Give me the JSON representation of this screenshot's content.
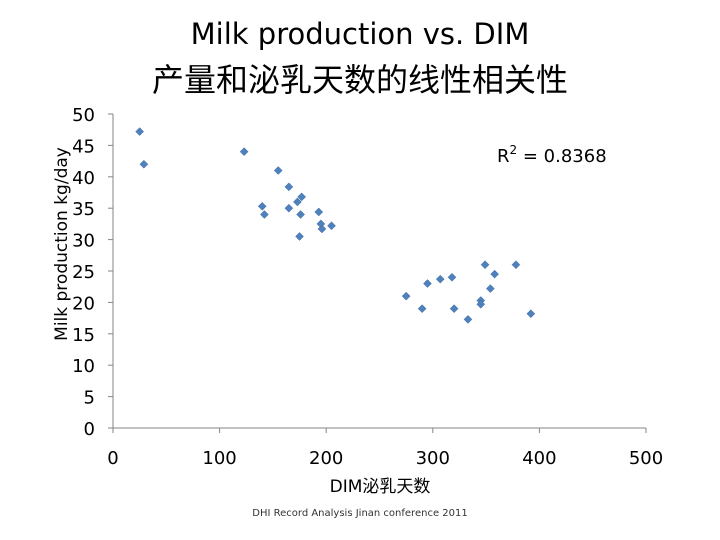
{
  "titles": {
    "en": "Milk production vs. DIM",
    "cn": "产量和泌乳天数的线性相关性"
  },
  "footer": "DHI Record Analysis Jinan conference 2011",
  "colors": {
    "marker": "#4f81bd",
    "axis": "#868686"
  },
  "chart_data": {
    "type": "scatter",
    "title": "Milk production vs. DIM",
    "subtitle": "产量和泌乳天数的线性相关性",
    "xlabel": "DIM泌乳天数",
    "ylabel": "Milk production kg/day",
    "xlim": [
      0,
      500
    ],
    "ylim": [
      0,
      50
    ],
    "xticks": [
      0,
      100,
      200,
      300,
      400,
      500
    ],
    "yticks": [
      0,
      5,
      10,
      15,
      20,
      25,
      30,
      35,
      40,
      45,
      50
    ],
    "grid": false,
    "annotation": {
      "label": "R",
      "sup": "2",
      "value": " = 0.8368"
    },
    "points": [
      {
        "x": 25,
        "y": 47.2
      },
      {
        "x": 29,
        "y": 42
      },
      {
        "x": 123,
        "y": 44
      },
      {
        "x": 155,
        "y": 41
      },
      {
        "x": 140,
        "y": 35.3
      },
      {
        "x": 142,
        "y": 34
      },
      {
        "x": 165,
        "y": 38.4
      },
      {
        "x": 165,
        "y": 35
      },
      {
        "x": 173,
        "y": 36
      },
      {
        "x": 177,
        "y": 36.8
      },
      {
        "x": 176,
        "y": 34
      },
      {
        "x": 175,
        "y": 30.5
      },
      {
        "x": 193,
        "y": 34.4
      },
      {
        "x": 195,
        "y": 32.5
      },
      {
        "x": 196,
        "y": 31.7
      },
      {
        "x": 205,
        "y": 32.2
      },
      {
        "x": 275,
        "y": 21
      },
      {
        "x": 290,
        "y": 19
      },
      {
        "x": 295,
        "y": 23
      },
      {
        "x": 307,
        "y": 23.7
      },
      {
        "x": 318,
        "y": 24
      },
      {
        "x": 320,
        "y": 19
      },
      {
        "x": 333,
        "y": 17.3
      },
      {
        "x": 345,
        "y": 20.3
      },
      {
        "x": 345,
        "y": 19.7
      },
      {
        "x": 349,
        "y": 26
      },
      {
        "x": 354,
        "y": 22.2
      },
      {
        "x": 358,
        "y": 24.5
      },
      {
        "x": 378,
        "y": 26
      },
      {
        "x": 392,
        "y": 18.2
      }
    ]
  }
}
